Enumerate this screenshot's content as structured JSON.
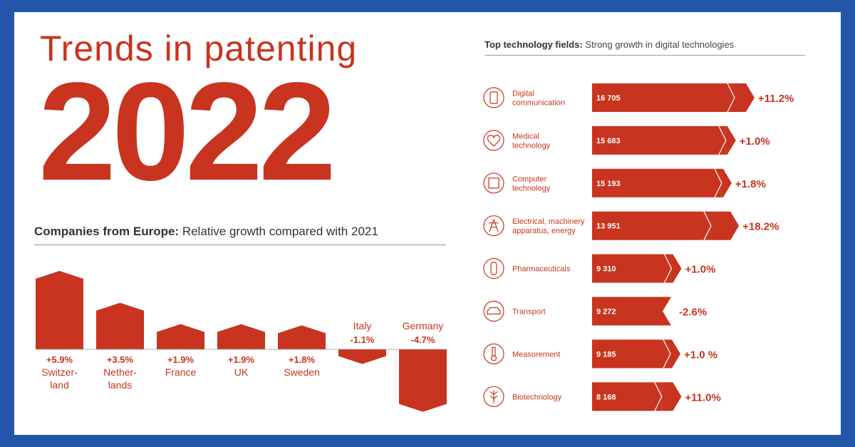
{
  "header": {
    "title": "Trends in patenting",
    "year": "2022"
  },
  "colors": {
    "accent": "#c8341f",
    "frame": "#2356a8"
  },
  "left_chart": {
    "heading_bold": "Companies from Europe:",
    "heading_rest": "Relative growth compared with 2021"
  },
  "right_chart": {
    "heading_bold": "Top technology fields:",
    "heading_rest": "Strong growth in digital technologies"
  },
  "chart_data": [
    {
      "type": "bar",
      "title": "Companies from Europe: Relative growth compared with 2021",
      "categories": [
        "Switzer-\nland",
        "Nether-\nlands",
        "France",
        "UK",
        "Sweden",
        "Italy",
        "Germany"
      ],
      "values": [
        5.9,
        3.5,
        1.9,
        1.9,
        1.8,
        -1.1,
        -4.7
      ],
      "labels": [
        "+5.9%",
        "+3.5%",
        "+1.9%",
        "+1.9%",
        "+1.8%",
        "-1.1%",
        "-4.7%"
      ],
      "unit": "%"
    },
    {
      "type": "bar",
      "orientation": "horizontal",
      "title": "Top technology fields: Strong growth in digital technologies",
      "categories": [
        "Digital\ncommunication",
        "Medical\ntechnology",
        "Computer\ntechnology",
        "Electrical, machinery\napparatus, energy",
        "Pharmaceuticals",
        "Transport",
        "Measurement",
        "Biotechnology"
      ],
      "values": [
        16705,
        15683,
        15193,
        13951,
        9310,
        9272,
        9185,
        8168
      ],
      "value_labels": [
        "16 705",
        "15 683",
        "15 193",
        "13 951",
        "9 310",
        "9 272",
        "9 185",
        "8 168"
      ],
      "growth": [
        11.2,
        1.0,
        1.8,
        18.2,
        1.0,
        -2.6,
        1.0,
        11.0
      ],
      "growth_labels": [
        "+11.2%",
        "+1.0%",
        "+1.8%",
        "+18.2%",
        "+1.0%",
        "-2.6%",
        "+1.0 %",
        "+11.0%"
      ],
      "icons": [
        "phone-icon",
        "heart-pulse-icon",
        "chip-icon",
        "power-tower-icon",
        "pill-icon",
        "car-icon",
        "thermometer-icon",
        "wheat-icon"
      ]
    }
  ]
}
